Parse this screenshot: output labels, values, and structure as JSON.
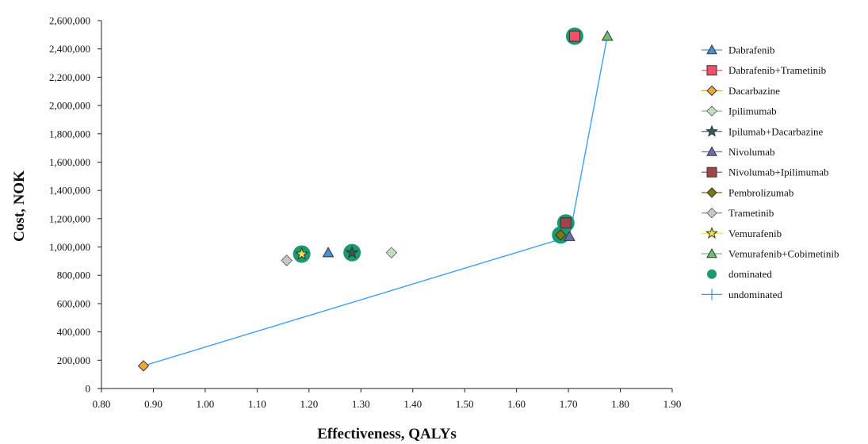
{
  "chart_data": {
    "type": "scatter",
    "title": "",
    "xlabel": "Effectiveness, QALYs",
    "ylabel": "Cost, NOK",
    "xlim": [
      0.8,
      1.9
    ],
    "ylim": [
      0,
      2600000
    ],
    "x_ticks": [
      "0.80",
      "0.90",
      "1.00",
      "1.10",
      "1.20",
      "1.30",
      "1.40",
      "1.50",
      "1.60",
      "1.70",
      "1.80",
      "1.90"
    ],
    "y_ticks": [
      "0",
      "200,000",
      "400,000",
      "600,000",
      "800,000",
      "1,000,000",
      "1,200,000",
      "1,400,000",
      "1,600,000",
      "1,800,000",
      "2,000,000",
      "2,200,000",
      "2,400,000",
      "2,600,000"
    ],
    "grid": false,
    "legend_position": "right",
    "series": [
      {
        "name": "Dabrafenib",
        "marker": "triangle",
        "color": "#4a8fd0",
        "points": [
          {
            "x": 1.237,
            "y": 960000
          }
        ]
      },
      {
        "name": "Dabrafenib+Trametinib",
        "marker": "square",
        "color": "#f0506a",
        "points": [
          {
            "x": 1.712,
            "y": 2490000
          }
        ]
      },
      {
        "name": "Dacarbazine",
        "marker": "diamond",
        "color": "#e9a93a",
        "points": [
          {
            "x": 0.881,
            "y": 160000
          }
        ]
      },
      {
        "name": "Ipilimumab",
        "marker": "diamond-hatch",
        "color": "#7dc87a",
        "points": [
          {
            "x": 1.359,
            "y": 960000
          }
        ]
      },
      {
        "name": "Ipilumab+Dacarbazine",
        "marker": "star",
        "color": "#2e5e5a",
        "points": [
          {
            "x": 1.283,
            "y": 960000
          }
        ]
      },
      {
        "name": "Nivolumab",
        "marker": "triangle",
        "color": "#6b6fb0",
        "points": [
          {
            "x": 1.702,
            "y": 1075000
          }
        ]
      },
      {
        "name": "Nivolumab+Ipilimumab",
        "marker": "square",
        "color": "#a0454a",
        "points": [
          {
            "x": 1.695,
            "y": 1170000
          }
        ]
      },
      {
        "name": "Pembrolizumab",
        "marker": "diamond",
        "color": "#7a7a10",
        "points": [
          {
            "x": 1.685,
            "y": 1085000
          }
        ]
      },
      {
        "name": "Trametinib",
        "marker": "diamond-hatch",
        "color": "#8a8a8a",
        "points": [
          {
            "x": 1.157,
            "y": 905000
          }
        ]
      },
      {
        "name": "Vemurafenib",
        "marker": "star",
        "color": "#f2e04a",
        "points": [
          {
            "x": 1.186,
            "y": 950000
          }
        ]
      },
      {
        "name": "Vemurafenib+Cobimetinib",
        "marker": "triangle",
        "color": "#6fbf73",
        "points": [
          {
            "x": 1.775,
            "y": 2490000
          }
        ]
      },
      {
        "name": "dominated",
        "marker": "circle",
        "color": "#1a9a6e",
        "points": [
          {
            "x": 1.186,
            "y": 950000
          },
          {
            "x": 1.283,
            "y": 960000
          },
          {
            "x": 1.685,
            "y": 1085000
          },
          {
            "x": 1.695,
            "y": 1170000
          },
          {
            "x": 1.712,
            "y": 2490000
          }
        ]
      },
      {
        "name": "undominated",
        "marker": "line",
        "color": "#3399ff",
        "points": [
          {
            "x": 0.881,
            "y": 160000
          },
          {
            "x": 1.702,
            "y": 1075000
          },
          {
            "x": 1.775,
            "y": 2490000
          }
        ]
      }
    ]
  }
}
